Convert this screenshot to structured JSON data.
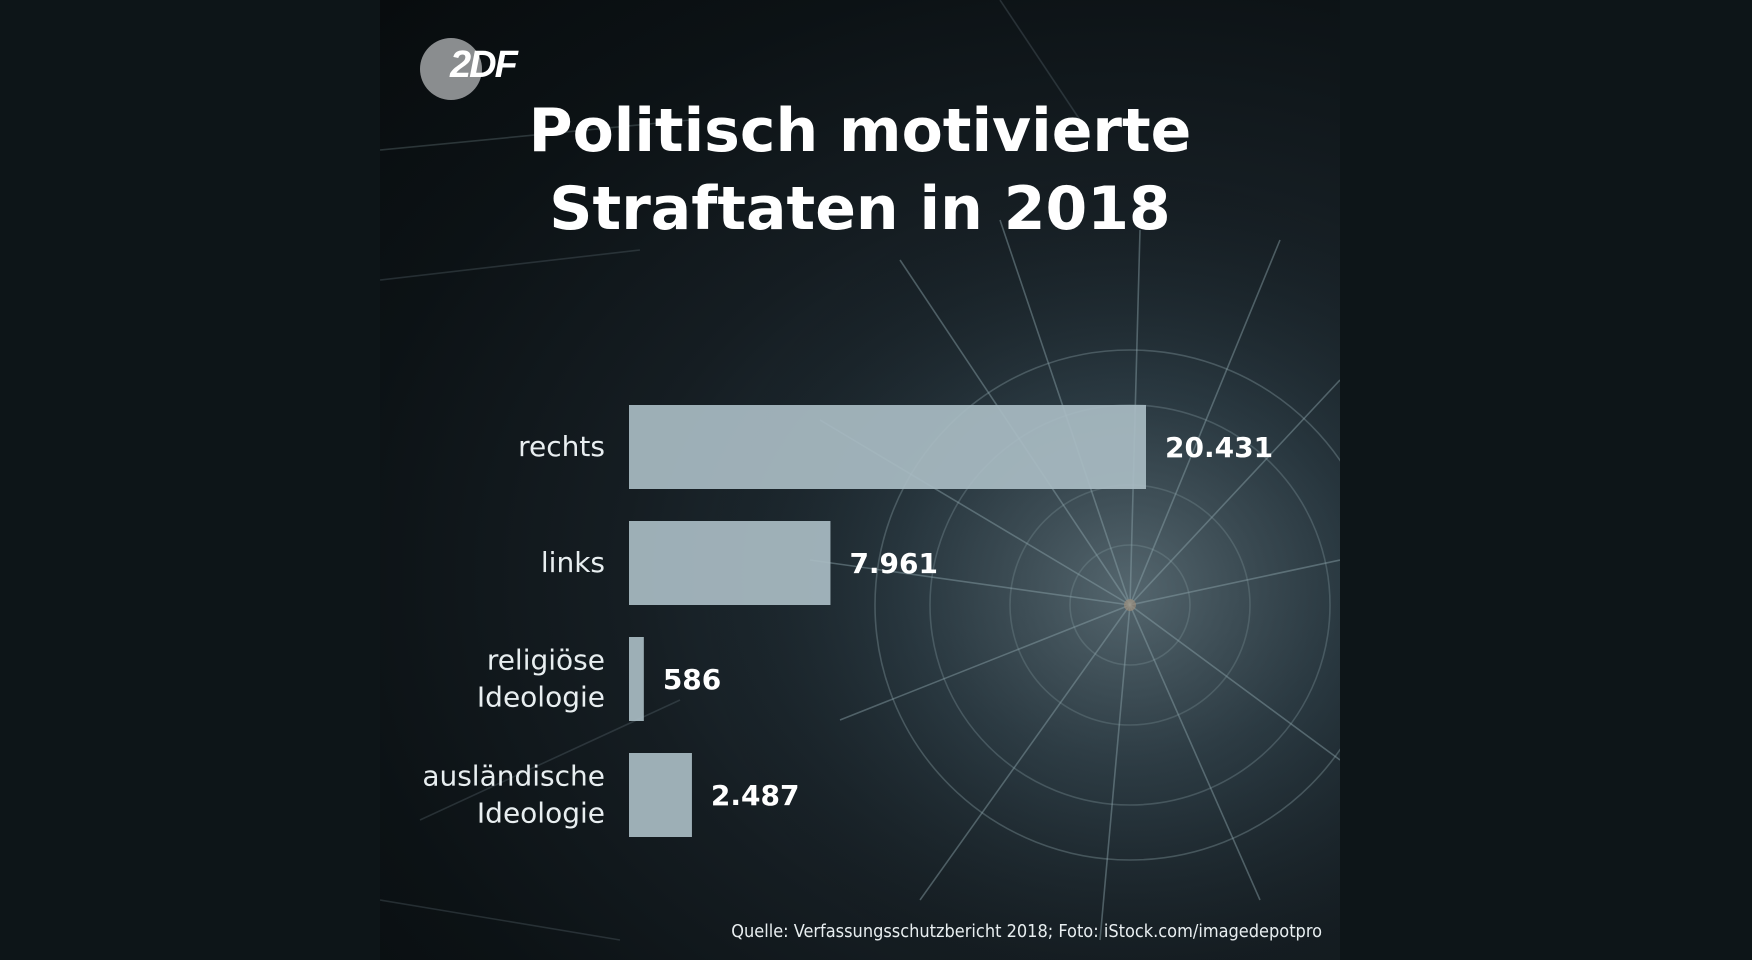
{
  "title_lines": [
    "Politisch motivierte",
    "Straftaten in 2018"
  ],
  "logo_text": "2DF",
  "source": "Quelle: Verfassungsschutzbericht 2018; Foto: iStock.com/imagedepotpro",
  "colors": {
    "bar": "#a9bcc3",
    "label": "#e8eef0",
    "value": "#ffffff"
  },
  "chart_data": {
    "type": "bar",
    "orientation": "horizontal",
    "categories": [
      [
        "rechts"
      ],
      [
        "links"
      ],
      [
        "religiöse",
        "Ideologie"
      ],
      [
        "ausländische",
        "Ideologie"
      ]
    ],
    "values": [
      20431,
      7961,
      586,
      2487
    ],
    "value_labels": [
      "20.431",
      "7.961",
      "586",
      "2.487"
    ],
    "title": "Politisch motivierte Straftaten in 2018",
    "grid": false
  }
}
